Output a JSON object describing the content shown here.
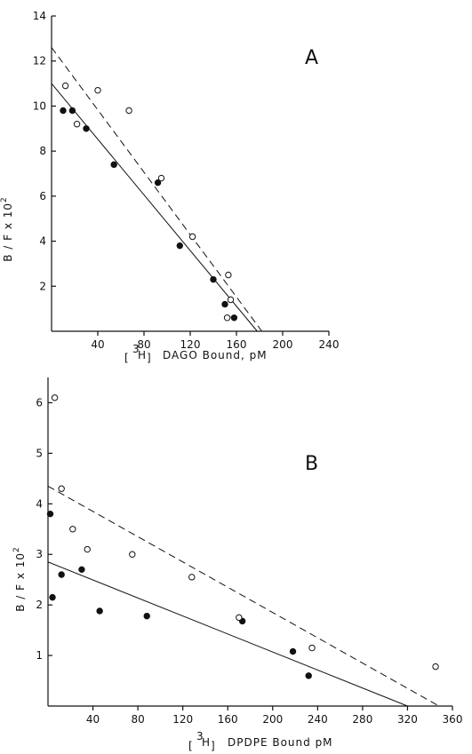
{
  "chart_data": [
    {
      "type": "scatter",
      "panel_label": "A",
      "xlabel_prefix": "[",
      "xlabel_super": "3",
      "xlabel_iso": "H",
      "xlabel_suffix": "]",
      "xlabel_text": "DAGO Bound, pM",
      "ylabel": "B / F x 10",
      "ylabel_exp": "2",
      "xlim": [
        0,
        240
      ],
      "ylim": [
        0,
        14
      ],
      "xticks": [
        40,
        80,
        120,
        160,
        200,
        240
      ],
      "yticks": [
        2,
        4,
        6,
        8,
        10,
        12,
        14
      ],
      "series": [
        {
          "marker": "filled",
          "line": "solid",
          "points": [
            [
              10,
              9.8
            ],
            [
              18,
              9.8
            ],
            [
              30,
              9.0
            ],
            [
              54,
              7.4
            ],
            [
              92,
              6.6
            ],
            [
              111,
              3.8
            ],
            [
              140,
              2.3
            ],
            [
              150,
              1.2
            ],
            [
              158,
              0.6
            ]
          ],
          "fit": [
            [
              0,
              11.0
            ],
            [
              178,
              0
            ]
          ]
        },
        {
          "marker": "open",
          "line": "dashed",
          "points": [
            [
              12,
              10.9
            ],
            [
              22,
              9.2
            ],
            [
              40,
              10.7
            ],
            [
              67,
              9.8
            ],
            [
              95,
              6.8
            ],
            [
              122,
              4.2
            ],
            [
              152,
              0.6
            ],
            [
              153,
              2.5
            ],
            [
              155,
              1.4
            ]
          ],
          "fit": [
            [
              0,
              12.6
            ],
            [
              182,
              0
            ]
          ]
        }
      ]
    },
    {
      "type": "scatter",
      "panel_label": "B",
      "xlabel_prefix": "[",
      "xlabel_super": "3",
      "xlabel_iso": "H",
      "xlabel_suffix": "]",
      "xlabel_text": "DPDPE Bound  pM",
      "ylabel": "B / F x 10",
      "ylabel_exp": "2",
      "xlim": [
        0,
        360
      ],
      "ylim": [
        0,
        6.5
      ],
      "xticks": [
        40,
        80,
        120,
        160,
        200,
        240,
        280,
        320,
        360
      ],
      "yticks": [
        1,
        2,
        3,
        4,
        5,
        6
      ],
      "series": [
        {
          "marker": "filled",
          "line": "solid",
          "points": [
            [
              2,
              3.8
            ],
            [
              4,
              2.15
            ],
            [
              12,
              2.6
            ],
            [
              30,
              2.7
            ],
            [
              46,
              1.88
            ],
            [
              88,
              1.78
            ],
            [
              173,
              1.68
            ],
            [
              218,
              1.08
            ],
            [
              232,
              0.6
            ]
          ],
          "fit": [
            [
              0,
              2.85
            ],
            [
              320,
              0
            ]
          ]
        },
        {
          "marker": "open",
          "line": "dashed",
          "points": [
            [
              6,
              6.1
            ],
            [
              12,
              4.3
            ],
            [
              22,
              3.5
            ],
            [
              35,
              3.1
            ],
            [
              75,
              3.0
            ],
            [
              128,
              2.55
            ],
            [
              170,
              1.75
            ],
            [
              235,
              1.15
            ],
            [
              345,
              0.78
            ]
          ],
          "fit": [
            [
              0,
              4.35
            ],
            [
              348,
              0
            ]
          ]
        }
      ]
    }
  ]
}
